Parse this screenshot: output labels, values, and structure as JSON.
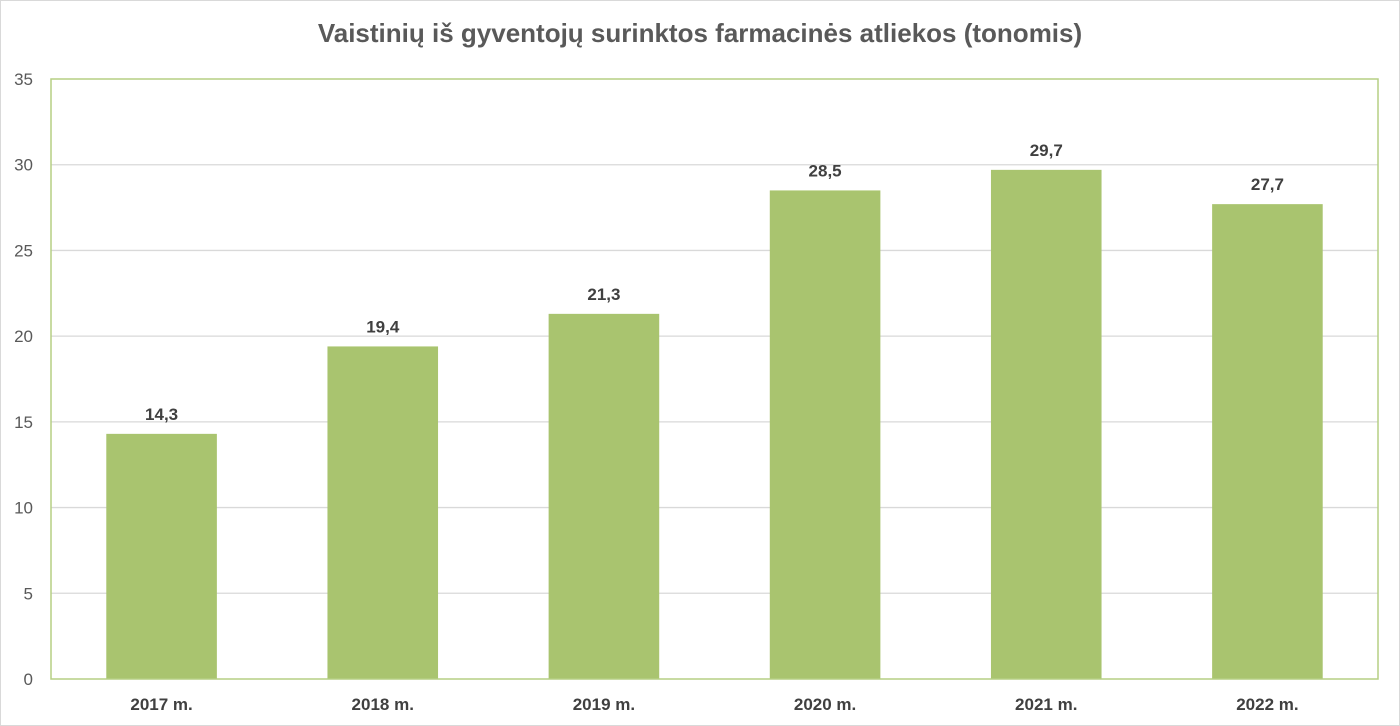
{
  "chart_data": {
    "type": "bar",
    "title": "Vaistinių iš gyventojų surinktos farmacinės atliekos (tonomis)",
    "categories": [
      "2017 m.",
      "2018 m.",
      "2019 m.",
      "2020 m.",
      "2021 m.",
      "2022 m."
    ],
    "values": [
      14.3,
      19.4,
      21.3,
      28.5,
      29.7,
      27.7
    ],
    "data_labels": [
      "14,3",
      "19,4",
      "21,3",
      "28,5",
      "29,7",
      "27,7"
    ],
    "ylim": [
      0,
      35
    ],
    "yticks": [
      0,
      5,
      10,
      15,
      20,
      25,
      30,
      35
    ],
    "xlabel": "",
    "ylabel": "",
    "grid": true,
    "legend": "none",
    "colors": {
      "bar": "#a9c46f",
      "grid": "#d9d9d9",
      "plot_border": "#b5cf84"
    }
  }
}
